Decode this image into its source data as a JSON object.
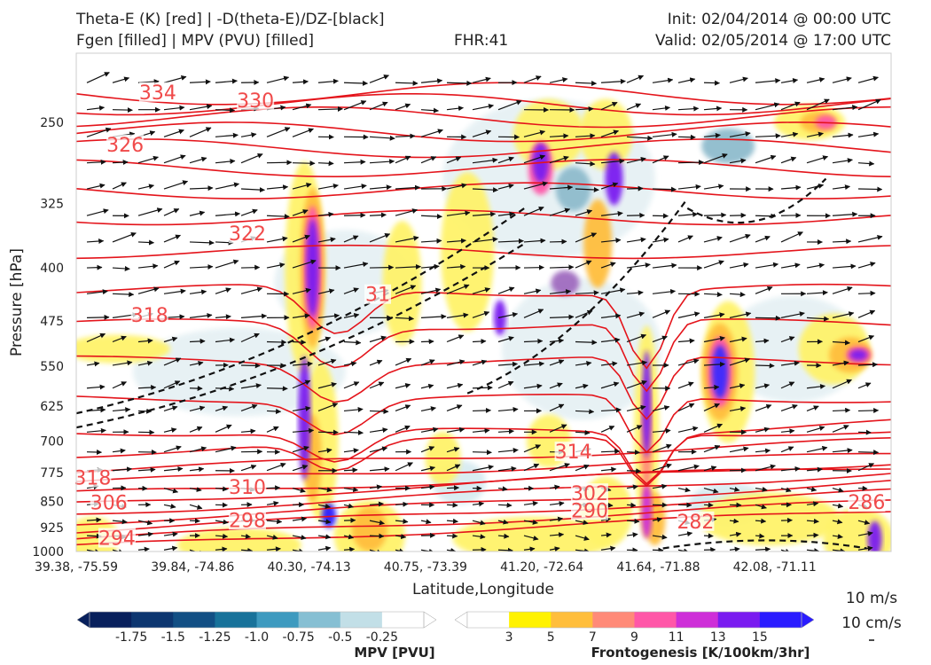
{
  "header": {
    "title_left_1": "Theta-E (K) [red] | -D(theta-E)/DZ-[black]",
    "title_left_2": "Fgen [filled] | MPV (PVU) [filled]",
    "fhr": "FHR:41",
    "init": "Init: 02/04/2014 @ 00:00 UTC",
    "valid": "Valid: 02/05/2014 @ 17:00 UTC"
  },
  "chart_data": {
    "type": "cross-section",
    "xlabel": "Latitude,Longitude",
    "ylabel": "Pressure [hPa]",
    "ylim": [
      1000,
      200
    ],
    "yscale": "log",
    "x_ticks": [
      "39.38, -75.59",
      "39.84, -74.86",
      "40.30, -74.13",
      "40.75, -73.39",
      "41.20, -72.64",
      "41.64, -71.88",
      "42.08, -71.11"
    ],
    "y_ticks": [
      250,
      325,
      400,
      475,
      550,
      625,
      700,
      775,
      850,
      925,
      1000
    ],
    "theta_e_labels": [
      {
        "text": "334",
        "x": 0.1,
        "p": 228
      },
      {
        "text": "330",
        "x": 0.22,
        "p": 234
      },
      {
        "text": "326",
        "x": 0.06,
        "p": 270
      },
      {
        "text": "322",
        "x": 0.21,
        "p": 360
      },
      {
        "text": "318",
        "x": 0.09,
        "p": 468
      },
      {
        "text": "31",
        "x": 0.37,
        "p": 438
      },
      {
        "text": "314",
        "x": 0.61,
        "p": 728
      },
      {
        "text": "318",
        "x": 0.02,
        "p": 792
      },
      {
        "text": "310",
        "x": 0.21,
        "p": 816
      },
      {
        "text": "306",
        "x": 0.04,
        "p": 858
      },
      {
        "text": "302",
        "x": 0.63,
        "p": 833
      },
      {
        "text": "290",
        "x": 0.63,
        "p": 880
      },
      {
        "text": "298",
        "x": 0.21,
        "p": 908
      },
      {
        "text": "294",
        "x": 0.05,
        "p": 962
      },
      {
        "text": "282",
        "x": 0.76,
        "p": 912
      },
      {
        "text": "286",
        "x": 0.97,
        "p": 857
      }
    ],
    "wind_scale": {
      "label1": "10 m/s",
      "label2": "10 cm/s"
    },
    "colorbars": [
      {
        "label": "MPV [PVU]",
        "ticks": [
          "-1.75",
          "-1.5",
          "-1.25",
          "-1.0",
          "-0.75",
          "-0.5",
          "-0.25"
        ],
        "colors": [
          "#08205c",
          "#0d3670",
          "#124f84",
          "#18729a",
          "#3d9abf",
          "#86bfd3",
          "#c2dfe7",
          "#ffffff"
        ]
      },
      {
        "label": "Frontogenesis [K/100km/3hr]",
        "ticks": [
          "3",
          "5",
          "7",
          "9",
          "11",
          "13",
          "15"
        ],
        "colors": [
          "#ffffff",
          "#fff200",
          "#ffbe3c",
          "#ff8a78",
          "#ff57a8",
          "#ce2fd8",
          "#7a1cf0",
          "#2a1cff"
        ]
      }
    ]
  }
}
